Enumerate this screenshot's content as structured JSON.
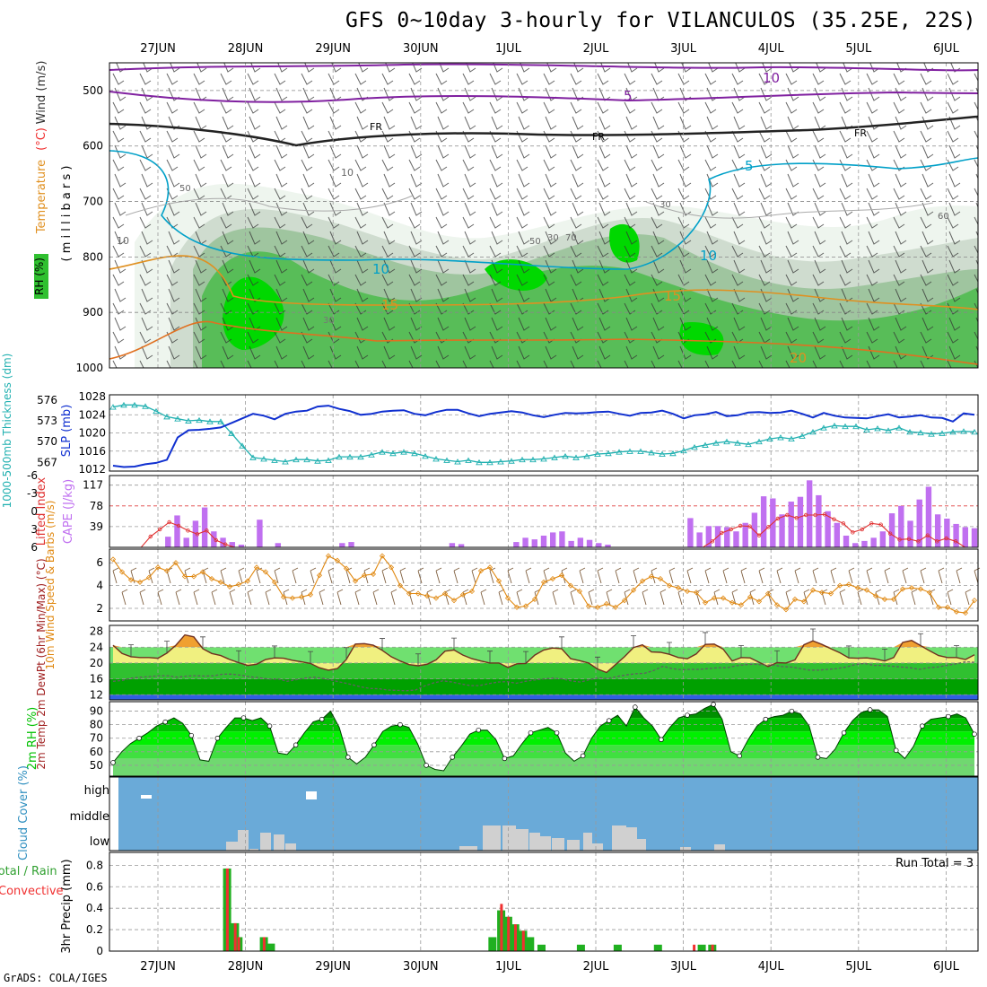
{
  "title": "GFS 0~10day 3-hourly for VILANCULOS (35.25E, 22S)",
  "footer": "GrADS: COLA/IGES",
  "colors": {
    "purple": "#8020a0",
    "cyan": "#00a0c8",
    "orange": "#e09020",
    "slp_blue": "#1030d0",
    "thick_cyan": "#20b0b0",
    "cape_bar": "#c070f0",
    "lifted_red": "#e03030",
    "wind_orange": "#e08810",
    "barb_brown": "#806040",
    "cloud_bg": "#6aaad8",
    "cloud_fill": "#d0d0d0",
    "precip_green": "#20b020",
    "precip_red": "#f03030",
    "rh_green": "#00c000",
    "temp_yellow": "#f0f080",
    "temp_orange": "#f0a030"
  },
  "chart_data": [
    {
      "type": "heatmap",
      "panel": "upper-air",
      "x_ticks": [
        "27JUN",
        "28JUN",
        "29JUN",
        "30JUN",
        "1JUL",
        "2JUL",
        "3JUL",
        "4JUL",
        "5JUL",
        "6JUL"
      ],
      "ylabel_parts": [
        "RH (%)",
        "Temperature",
        "(°C)",
        "Wind (m/s)"
      ],
      "y_axis_label": "( m i l l i b a r s )",
      "y_ticks": [
        500,
        600,
        700,
        800,
        900,
        1000
      ],
      "ylim": [
        1000,
        450
      ],
      "contour_labels": [
        "10",
        "5",
        "FR",
        "FR",
        "FR",
        "5",
        "10",
        "10",
        "15",
        "15",
        "20",
        "10",
        "10",
        "30",
        "50",
        "70",
        "30",
        "50",
        "30",
        "60"
      ]
    },
    {
      "type": "line",
      "panel": "slp-thickness",
      "ylabel_left": "1000-500mb Thickness (dm)",
      "ylabel_right": "SLP (mb)",
      "left_ticks": [
        567,
        570,
        573,
        576
      ],
      "right_ticks": [
        1012,
        1016,
        1020,
        1024,
        1028
      ],
      "series": [
        {
          "name": "SLP (mb)",
          "values": [
            1012.8,
            1012.5,
            1012.6,
            1013.1,
            1013.4,
            1014.1,
            1019.0,
            1020.6,
            1020.7,
            1020.9,
            1021.2,
            1022.2,
            1023.2,
            1024.2,
            1023.8,
            1023.0,
            1024.2,
            1024.7,
            1024.9,
            1025.8,
            1026.0,
            1025.3,
            1024.8,
            1024.0,
            1024.2,
            1024.7,
            1024.9,
            1025.0,
            1024.2,
            1023.9,
            1024.6,
            1025.1,
            1025.1,
            1024.3,
            1023.7,
            1024.2,
            1024.5,
            1024.8,
            1024.5,
            1023.9,
            1023.5,
            1024.0,
            1024.4,
            1024.3,
            1024.4,
            1024.6,
            1024.7,
            1024.2,
            1023.8,
            1024.4,
            1024.5,
            1024.9,
            1024.2,
            1023.2,
            1023.9,
            1024.1,
            1024.6,
            1023.7,
            1023.9,
            1024.5,
            1024.6,
            1024.4,
            1024.5,
            1024.9,
            1024.2,
            1023.4,
            1024.4,
            1023.8,
            1023.4,
            1023.3,
            1023.2,
            1023.7,
            1024.1,
            1023.4,
            1023.6,
            1023.9,
            1023.4,
            1023.3,
            1022.5,
            1024.3,
            1024.0
          ]
        },
        {
          "name": "Thickness (dm)",
          "values": [
            575.0,
            575.3,
            575.3,
            575.1,
            574.4,
            573.6,
            573.3,
            573.0,
            573.1,
            572.9,
            572.9,
            571.2,
            569.4,
            567.7,
            567.5,
            567.3,
            567.1,
            567.4,
            567.4,
            567.2,
            567.3,
            567.8,
            567.8,
            567.8,
            568.1,
            568.5,
            568.3,
            568.5,
            568.3,
            567.9,
            567.5,
            567.3,
            567.1,
            567.3,
            567.0,
            567.0,
            567.1,
            567.2,
            567.4,
            567.4,
            567.5,
            567.7,
            567.9,
            567.7,
            567.9,
            568.2,
            568.3,
            568.5,
            568.6,
            568.6,
            568.4,
            568.2,
            568.3,
            568.7,
            569.2,
            569.5,
            569.8,
            570.0,
            569.8,
            569.6,
            570.0,
            570.4,
            570.6,
            570.4,
            570.8,
            571.4,
            572.0,
            572.3,
            572.2,
            572.2,
            571.7,
            571.9,
            571.6,
            572.0,
            571.4,
            571.3,
            571.1,
            571.2,
            571.4,
            571.5,
            571.4
          ]
        }
      ]
    },
    {
      "type": "bar",
      "panel": "cape-li",
      "ylabel_left": "Lifted Index",
      "ylabel_right": "CAPE (J/kg)",
      "li_ticks": [
        "-6",
        "-3",
        "0",
        "3",
        "6"
      ],
      "cape_ticks": [
        "39",
        "78",
        "117"
      ],
      "series": [
        {
          "name": "CAPE (J/kg)",
          "values": [
            0,
            0,
            0,
            0,
            0,
            0,
            20,
            60,
            18,
            50,
            75,
            30,
            18,
            10,
            5,
            0,
            52,
            0,
            8,
            0,
            0,
            0,
            0,
            0,
            0,
            8,
            10,
            0,
            0,
            0,
            0,
            0,
            0,
            0,
            0,
            0,
            0,
            8,
            6,
            0,
            0,
            0,
            0,
            0,
            10,
            18,
            15,
            22,
            28,
            30,
            12,
            18,
            14,
            8,
            5,
            0,
            0,
            0,
            0,
            0,
            0,
            0,
            0,
            55,
            28,
            40,
            40,
            38,
            30,
            46,
            65,
            96,
            92,
            62,
            86,
            95,
            126,
            98,
            68,
            46,
            22,
            8,
            12,
            18,
            30,
            64,
            78,
            50,
            90,
            114,
            62,
            54,
            44,
            38,
            36
          ]
        },
        {
          "name": "Lifted Index",
          "values": [
            6,
            6,
            6,
            6,
            4.2,
            3.0,
            1.8,
            2.4,
            3.2,
            3.8,
            3.2,
            4.8,
            5.5,
            6,
            6,
            6,
            6,
            6,
            6,
            6,
            6,
            6,
            6,
            6,
            6,
            6,
            6,
            6,
            6,
            6,
            6,
            6,
            6,
            6,
            6,
            6,
            6,
            6,
            6,
            6,
            6,
            6,
            6,
            6,
            6,
            6,
            6,
            6,
            6,
            6,
            6,
            6,
            6,
            6,
            6,
            6,
            6,
            6,
            6,
            6,
            6,
            6,
            6,
            6,
            5.0,
            3.6,
            3.0,
            2.4,
            2.5,
            4.0,
            2.6,
            1.2,
            0.6,
            1.1,
            0.6,
            0.6,
            0.5,
            1.3,
            2.0,
            3.5,
            3.0,
            2.0,
            2.2,
            3.7,
            4.7,
            4.6,
            5.0,
            4.0,
            5.0,
            4.5,
            5.0,
            6.0,
            6.0
          ]
        }
      ]
    },
    {
      "type": "line",
      "panel": "wind10m",
      "ylabel": "10m Wind Speed & Barbs (m/s)",
      "y_ticks": [
        2,
        4,
        6
      ],
      "series": [
        {
          "name": "10m Wind Speed",
          "values": [
            6.3,
            5.2,
            4.5,
            4.3,
            4.7,
            5.6,
            5.3,
            6.0,
            4.8,
            4.8,
            5.2,
            4.6,
            4.3,
            3.9,
            4.1,
            4.4,
            5.6,
            5.2,
            4.3,
            3.0,
            2.9,
            3.0,
            3.2,
            4.9,
            6.6,
            6.2,
            5.5,
            4.4,
            4.9,
            5.0,
            6.6,
            5.6,
            4.0,
            3.3,
            3.3,
            3.1,
            2.9,
            3.3,
            2.7,
            3.2,
            3.5,
            5.3,
            5.6,
            4.4,
            2.9,
            2.1,
            2.2,
            2.8,
            4.3,
            4.6,
            4.9,
            4.0,
            3.5,
            2.2,
            2.1,
            2.4,
            2.1,
            2.7,
            3.6,
            4.4,
            4.8,
            4.6,
            4.0,
            3.8,
            3.5,
            3.4,
            2.5,
            2.9,
            2.9,
            2.5,
            2.3,
            3.0,
            2.6,
            3.3,
            2.3,
            1.9,
            2.8,
            2.6,
            3.6,
            3.4,
            3.3,
            4.0,
            4.1,
            3.8,
            3.6,
            3.1,
            2.8,
            2.8,
            3.7,
            3.8,
            3.7,
            3.4,
            2.1,
            2.1,
            1.7,
            1.6,
            2.7
          ]
        }
      ]
    },
    {
      "type": "area",
      "panel": "temp2m",
      "ylabel": "2m Temp 2m DewPt (6hr Min/Max) (°C)",
      "y_ticks": [
        12,
        16,
        20,
        24,
        28
      ],
      "series": [
        {
          "name": "2m Temp",
          "values": [
            24.5,
            22.4,
            21.6,
            21.4,
            21.4,
            21.2,
            22.5,
            24.5,
            27.1,
            26.6,
            23.6,
            22.4,
            21.9,
            20.9,
            20.1,
            19.4,
            19.7,
            20.9,
            21.3,
            21.2,
            20.7,
            20.3,
            19.9,
            18.8,
            18.2,
            18.6,
            20.9,
            24.8,
            24.9,
            24.5,
            23.2,
            21.6,
            20.5,
            19.6,
            19.3,
            19.7,
            20.8,
            23.0,
            23.3,
            22.0,
            21.1,
            20.5,
            20.0,
            20.0,
            18.9,
            19.8,
            19.9,
            22.0,
            23.3,
            23.8,
            23.6,
            21.1,
            20.6,
            20.0,
            18.5,
            17.6,
            19.6,
            21.6,
            23.9,
            24.6,
            22.8,
            22.7,
            22.2,
            21.4,
            21.1,
            22.3,
            24.7,
            24.8,
            23.5,
            20.5,
            21.4,
            21.3,
            20.2,
            19.1,
            20.1,
            20.0,
            20.8,
            24.6,
            25.6,
            24.7,
            23.6,
            22.6,
            21.3,
            21.2,
            21.3,
            21.0,
            20.5,
            21.4,
            25.2,
            25.7,
            24.4,
            23.1,
            21.9,
            21.4,
            21.4,
            20.9,
            22.1
          ]
        },
        {
          "name": "2m DewPt",
          "values": [
            15.4,
            15.6,
            16.2,
            16.4,
            16.6,
            16.8,
            16.8,
            16.4,
            16.7,
            16.8,
            16.7,
            16.8,
            17.2,
            17.2,
            16.9,
            16.5,
            16.3,
            15.9,
            16.0,
            15.4,
            15.8,
            16.2,
            16.4,
            16.1,
            15.6,
            15.1,
            14.6,
            14.0,
            13.6,
            13.5,
            13.2,
            13.1,
            13.0,
            13.2,
            14.2,
            15.0,
            15.5,
            15.2,
            14.7,
            14.3,
            14.3,
            14.8,
            15.2,
            15.3,
            14.9,
            15.4,
            15.7,
            16.0,
            16.2,
            16.0,
            15.5,
            15.2,
            15.8,
            16.3,
            16.1,
            16.6,
            17.0,
            17.3,
            17.4,
            18.1,
            19.2,
            18.6,
            18.3,
            18.4,
            18.4,
            18.6,
            18.8,
            18.8,
            19.3,
            19.6,
            19.7,
            19.5,
            19.5,
            19.1,
            19.0,
            18.6,
            18.2,
            18.2,
            18.4,
            18.6,
            19.0,
            19.6,
            19.9,
            19.4,
            19.4,
            19.2,
            19.0,
            18.8,
            18.4,
            18.8,
            19.0,
            19.4,
            19.8,
            20.3,
            20.2
          ]
        }
      ]
    },
    {
      "type": "area",
      "panel": "rh2m",
      "ylabel": "2m RH (%)",
      "y_ticks": [
        50,
        60,
        70,
        80,
        90
      ],
      "series": [
        {
          "name": "2m RH",
          "values": [
            52,
            60,
            66,
            70,
            74,
            79,
            82,
            85,
            81,
            72,
            54,
            53,
            70,
            78,
            85,
            85,
            83,
            85,
            79,
            59,
            58,
            65,
            74,
            82,
            84,
            90,
            78,
            56,
            51,
            56,
            65,
            75,
            79,
            80,
            78,
            66,
            50,
            47,
            46,
            56,
            64,
            73,
            76,
            76,
            69,
            55,
            57,
            66,
            74,
            76,
            78,
            74,
            59,
            53,
            57,
            70,
            79,
            83,
            87,
            79,
            93,
            85,
            79,
            69,
            78,
            85,
            87,
            88,
            92,
            95,
            84,
            60,
            57,
            69,
            79,
            84,
            86,
            87,
            90,
            88,
            79,
            56,
            55,
            62,
            74,
            83,
            89,
            91,
            91,
            86,
            61,
            55,
            64,
            79,
            84,
            85,
            86,
            88,
            85,
            73
          ]
        }
      ]
    },
    {
      "type": "area",
      "panel": "cloud",
      "ylabel": "Cloud Cover (%)",
      "y_ticks": [
        "high",
        "middle",
        "low"
      ]
    },
    {
      "type": "bar",
      "panel": "precip",
      "ylabel": "3hr Precip (mm)",
      "ylabel_left": "Total / Rain",
      "ylabel_left2": "Convective",
      "annotation": "Run Total = 3",
      "y_ticks": [
        "0",
        "0.2",
        "0.4",
        "0.6",
        "0.8"
      ],
      "series": [
        {
          "name": "Total",
          "values": [
            {
              "x": 0.79,
              "v": 0.77
            },
            {
              "x": 0.83,
              "v": 0.06
            },
            {
              "x": 0.88,
              "v": 0.26
            },
            {
              "x": 0.92,
              "v": 0.13
            },
            {
              "x": 1.21,
              "v": 0.13
            },
            {
              "x": 1.29,
              "v": 0.07
            },
            {
              "x": 3.82,
              "v": 0.13
            },
            {
              "x": 3.92,
              "v": 0.38
            },
            {
              "x": 4.0,
              "v": 0.32
            },
            {
              "x": 4.08,
              "v": 0.25
            },
            {
              "x": 4.17,
              "v": 0.19
            },
            {
              "x": 4.25,
              "v": 0.13
            },
            {
              "x": 4.38,
              "v": 0.06
            },
            {
              "x": 4.83,
              "v": 0.06
            },
            {
              "x": 5.25,
              "v": 0.06
            },
            {
              "x": 5.71,
              "v": 0.06
            },
            {
              "x": 6.21,
              "v": 0.06
            },
            {
              "x": 6.33,
              "v": 0.06
            }
          ]
        },
        {
          "name": "Convective",
          "values": [
            {
              "x": 0.79,
              "v": 0.77
            },
            {
              "x": 0.88,
              "v": 0.26
            },
            {
              "x": 0.92,
              "v": 0.13
            },
            {
              "x": 1.21,
              "v": 0.13
            },
            {
              "x": 3.92,
              "v": 0.44
            },
            {
              "x": 4.0,
              "v": 0.32
            },
            {
              "x": 4.08,
              "v": 0.25
            },
            {
              "x": 4.17,
              "v": 0.19
            },
            {
              "x": 6.12,
              "v": 0.06
            },
            {
              "x": 6.33,
              "v": 0.06
            }
          ]
        }
      ]
    }
  ]
}
